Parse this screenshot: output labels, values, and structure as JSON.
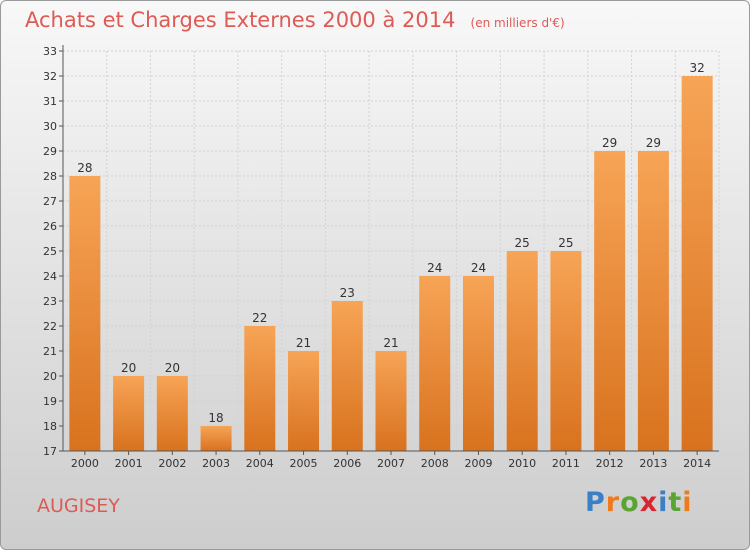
{
  "header": {
    "title": "Achats et Charges Externes 2000 à 2014",
    "subtitle": "(en milliers d'€)"
  },
  "footer": {
    "city": "AUGISEY",
    "logo": {
      "letters": [
        "P",
        "r",
        "o",
        "x",
        "i",
        "t",
        "i"
      ],
      "colors": [
        "#3b7fc4",
        "#f07a1a",
        "#5aa532",
        "#d8262f",
        "#3b7fc4",
        "#5aa532",
        "#f07a1a"
      ]
    }
  },
  "chart_data": {
    "type": "bar",
    "categories": [
      "2000",
      "2001",
      "2002",
      "2003",
      "2004",
      "2005",
      "2006",
      "2007",
      "2008",
      "2009",
      "2010",
      "2011",
      "2012",
      "2013",
      "2014"
    ],
    "values": [
      28,
      20,
      20,
      18,
      22,
      21,
      23,
      21,
      24,
      24,
      25,
      25,
      29,
      29,
      32
    ],
    "title": "Achats et Charges Externes 2000 à 2014",
    "subtitle": "(en milliers d'€)",
    "ylim": [
      17,
      33
    ],
    "yticks": [
      17,
      18,
      19,
      20,
      21,
      22,
      23,
      24,
      25,
      26,
      27,
      28,
      29,
      30,
      31,
      32,
      33
    ],
    "grid": true,
    "bar_color": "#f08a2e"
  }
}
